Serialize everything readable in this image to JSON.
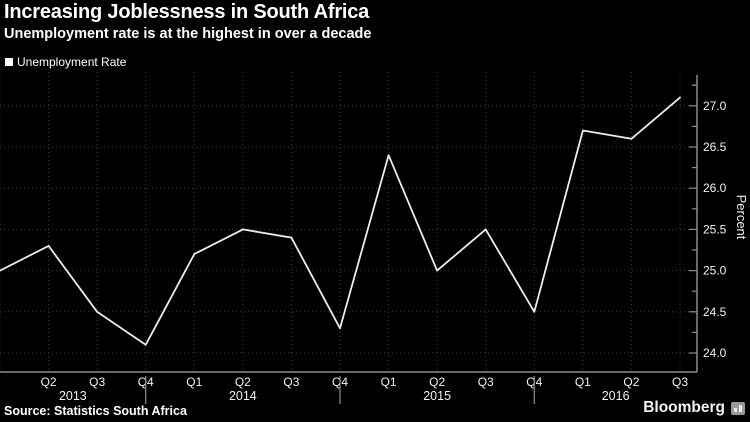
{
  "header": {
    "title": "Increasing Joblessness in South Africa",
    "subtitle": "Unemployment rate is at the highest in over a decade"
  },
  "legend": {
    "label": "Unemployment Rate",
    "marker": "white-square"
  },
  "footer": {
    "source": "Source: Statistics South Africa",
    "brand": "Bloomberg",
    "brand_icon": "bloomberg-terminal-icon"
  },
  "colors": {
    "background": "#000000",
    "text": "#ffffff",
    "line": "#ededed",
    "axis": "#8c8c8c",
    "grid": "#3d3d3d"
  },
  "chart_data": {
    "type": "line",
    "title": "Increasing Joblessness in South Africa",
    "subtitle": "Unemployment rate is at the highest in over a decade",
    "x": [
      "Q1 2013",
      "Q2 2013",
      "Q3 2013",
      "Q4 2013",
      "Q1 2014",
      "Q2 2014",
      "Q3 2014",
      "Q4 2014",
      "Q1 2015",
      "Q2 2015",
      "Q3 2015",
      "Q4 2015",
      "Q1 2016",
      "Q2 2016",
      "Q3 2016"
    ],
    "x_tick_labels": [
      "",
      "Q2",
      "Q3",
      "Q4",
      "Q1",
      "Q2",
      "Q3",
      "Q4",
      "Q1",
      "Q2",
      "Q3",
      "Q4",
      "Q1",
      "Q2",
      "Q3"
    ],
    "year_labels": [
      "2013",
      "2014",
      "2015",
      "2016"
    ],
    "series": [
      {
        "name": "Unemployment Rate",
        "values": [
          25.0,
          25.3,
          24.5,
          24.1,
          25.2,
          25.5,
          25.4,
          24.3,
          26.4,
          25.0,
          25.5,
          24.5,
          26.7,
          26.6,
          27.1
        ]
      }
    ],
    "xlabel": "",
    "ylabel": "Percent",
    "y_ticks": [
      24.0,
      24.5,
      25.0,
      25.5,
      26.0,
      26.5,
      27.0
    ],
    "y_minor_tick_step": 0.25,
    "ylim": [
      23.77,
      27.37
    ],
    "grid": true,
    "grid_style": "dotted",
    "y_axis_side": "right",
    "legend_position": "top-left"
  }
}
